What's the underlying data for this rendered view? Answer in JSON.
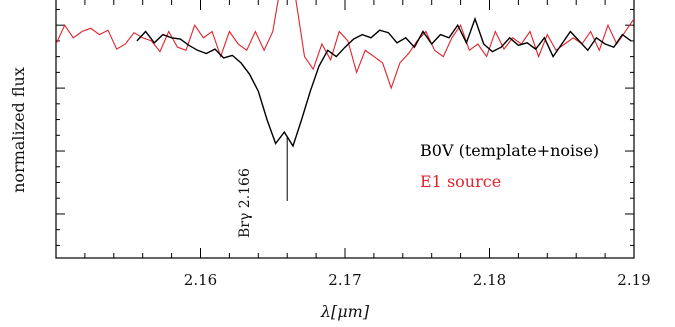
{
  "chart_data": {
    "type": "line",
    "xlabel": "λ[μm]",
    "ylabel": "normalized flux",
    "xlim": [
      2.15,
      2.19
    ],
    "ylim": [
      0.68,
      1.09
    ],
    "x_ticks": [
      2.16,
      2.17,
      2.18,
      2.19
    ],
    "x_tick_labels": [
      "2.16",
      "2.17",
      "2.18",
      "2.19"
    ],
    "y_tick_values": [
      0.75,
      0.85,
      0.95,
      1.05
    ],
    "legend_position": "right",
    "series": [
      {
        "name": "B0V (template+noise)",
        "color": "#000000",
        "x": [
          2.1556,
          2.1562,
          2.1568,
          2.1574,
          2.158,
          2.1586,
          2.1592,
          2.1598,
          2.1604,
          2.161,
          2.1616,
          2.1622,
          2.1628,
          2.1634,
          2.164,
          2.1646,
          2.1652,
          2.1658,
          2.1664,
          2.167,
          2.1676,
          2.1682,
          2.1688,
          2.1694,
          2.17,
          2.1706,
          2.1712,
          2.1718,
          2.1724,
          2.173,
          2.1736,
          2.1742,
          2.1748,
          2.1754,
          2.176,
          2.1766,
          2.1772,
          2.1778,
          2.1784,
          2.179,
          2.1796,
          2.1802,
          2.1808,
          2.1814,
          2.182,
          2.1826,
          2.1832,
          2.1838,
          2.1844,
          2.185,
          2.1856,
          2.1862,
          2.1868,
          2.1874,
          2.188,
          2.1886,
          2.1892,
          2.1898
        ],
        "y": [
          1.025,
          1.04,
          1.022,
          1.035,
          1.03,
          1.028,
          1.018,
          1.01,
          1.005,
          1.012,
          0.998,
          1.002,
          0.99,
          0.972,
          0.945,
          0.9,
          0.862,
          0.88,
          0.858,
          0.9,
          0.945,
          0.985,
          1.01,
          1.0,
          1.015,
          1.028,
          1.035,
          1.03,
          1.042,
          1.038,
          1.022,
          1.03,
          1.015,
          1.04,
          1.02,
          1.035,
          1.03,
          1.05,
          1.022,
          1.06,
          1.02,
          1.008,
          1.015,
          1.03,
          1.018,
          1.022,
          1.012,
          1.03,
          1.0,
          1.02,
          1.04,
          1.025,
          1.01,
          1.03,
          1.02,
          1.015,
          1.035,
          1.025
        ]
      },
      {
        "name": "E1 source",
        "color": "#e0232c",
        "x": [
          2.15,
          2.1506,
          2.1512,
          2.1518,
          2.1524,
          2.153,
          2.1536,
          2.1542,
          2.1548,
          2.1554,
          2.156,
          2.1566,
          2.1572,
          2.1578,
          2.1584,
          2.159,
          2.1596,
          2.1602,
          2.1608,
          2.1614,
          2.162,
          2.1626,
          2.1632,
          2.1638,
          2.1644,
          2.165,
          2.1656,
          2.166,
          2.1664,
          2.1668,
          2.1672,
          2.1678,
          2.1684,
          2.169,
          2.1696,
          2.1702,
          2.1708,
          2.1714,
          2.172,
          2.1726,
          2.1732,
          2.1738,
          2.1744,
          2.175,
          2.1756,
          2.1762,
          2.1768,
          2.1774,
          2.178,
          2.1786,
          2.1792,
          2.1798,
          2.1804,
          2.181,
          2.1816,
          2.1822,
          2.1828,
          2.1834,
          2.184,
          2.1846,
          2.1852,
          2.1858,
          2.1864,
          2.187,
          2.1876,
          2.1882,
          2.1888,
          2.1894,
          2.19
        ],
        "y": [
          1.02,
          1.05,
          1.03,
          1.04,
          1.045,
          1.035,
          1.042,
          1.012,
          1.02,
          1.038,
          1.03,
          1.025,
          1.008,
          1.04,
          1.015,
          1.01,
          1.05,
          1.03,
          1.04,
          1.0,
          1.04,
          1.02,
          1.01,
          1.04,
          1.01,
          1.04,
          1.12,
          1.14,
          1.12,
          1.06,
          1.0,
          0.98,
          1.02,
          0.995,
          1.04,
          1.025,
          0.975,
          1.01,
          1.0,
          0.99,
          0.95,
          0.99,
          1.005,
          1.025,
          1.04,
          1.01,
          1.0,
          1.03,
          1.05,
          1.01,
          1.02,
          1.0,
          1.04,
          1.012,
          1.03,
          1.02,
          1.04,
          1.0,
          1.035,
          1.01,
          1.02,
          1.03,
          1.02,
          1.04,
          1.01,
          1.05,
          1.02,
          1.04,
          1.06
        ]
      }
    ],
    "annotation": {
      "text": "Brγ 2.166",
      "x": 2.166,
      "y_from": 0.812,
      "y_to": 0.872
    }
  }
}
